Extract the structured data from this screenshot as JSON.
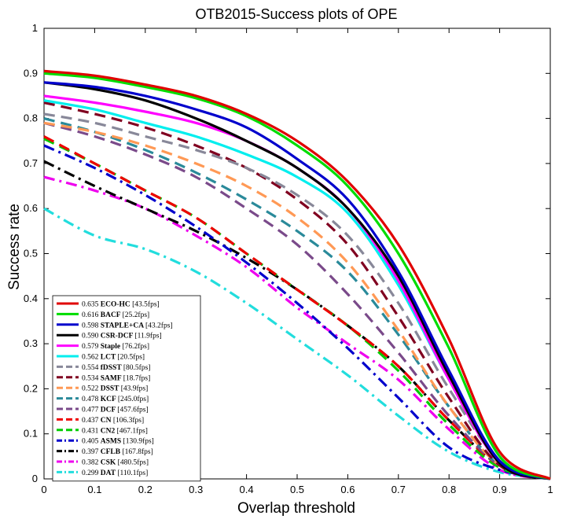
{
  "chart_data": {
    "type": "line",
    "title": "OTB2015-Success plots of OPE",
    "xlabel": "Overlap threshold",
    "ylabel": "Success rate",
    "xlim": [
      0,
      1
    ],
    "ylim": [
      0,
      1
    ],
    "xticks": [
      "0",
      "0.1",
      "0.2",
      "0.3",
      "0.4",
      "0.5",
      "0.6",
      "0.7",
      "0.8",
      "0.9",
      "1"
    ],
    "yticks": [
      "0",
      "0.1",
      "0.2",
      "0.3",
      "0.4",
      "0.5",
      "0.6",
      "0.7",
      "0.8",
      "0.9",
      "1"
    ],
    "grid": false,
    "legend_position": "bottom-left",
    "x": [
      0,
      0.1,
      0.2,
      0.3,
      0.4,
      0.5,
      0.6,
      0.7,
      0.8,
      0.9,
      1.0
    ],
    "series": [
      {
        "name": "ECO-HC",
        "score": "0.635",
        "fps": "[43.5fps]",
        "color": "#e00000",
        "style": "solid",
        "values": [
          0.905,
          0.895,
          0.875,
          0.85,
          0.81,
          0.75,
          0.66,
          0.52,
          0.31,
          0.06,
          0.0
        ]
      },
      {
        "name": "BACF",
        "score": "0.616",
        "fps": "[25.2fps]",
        "color": "#00dd00",
        "style": "solid",
        "values": [
          0.9,
          0.89,
          0.87,
          0.845,
          0.805,
          0.74,
          0.65,
          0.5,
          0.29,
          0.05,
          0.0
        ]
      },
      {
        "name": "STAPLE+CA",
        "score": "0.598",
        "fps": "[43.2fps]",
        "color": "#0000cc",
        "style": "solid",
        "values": [
          0.88,
          0.87,
          0.85,
          0.82,
          0.78,
          0.71,
          0.62,
          0.46,
          0.24,
          0.04,
          0.0
        ]
      },
      {
        "name": "CSR-DCF",
        "score": "0.590",
        "fps": "[11.9fps]",
        "color": "#000000",
        "style": "solid",
        "values": [
          0.88,
          0.865,
          0.84,
          0.8,
          0.75,
          0.69,
          0.6,
          0.45,
          0.23,
          0.035,
          0.0
        ]
      },
      {
        "name": "Staple",
        "score": "0.579",
        "fps": "[76.2fps]",
        "color": "#ff00ff",
        "style": "solid",
        "values": [
          0.85,
          0.835,
          0.815,
          0.79,
          0.75,
          0.69,
          0.6,
          0.44,
          0.22,
          0.035,
          0.0
        ]
      },
      {
        "name": "LCT",
        "score": "0.562",
        "fps": "[20.5fps]",
        "color": "#00eeee",
        "style": "solid",
        "values": [
          0.84,
          0.82,
          0.79,
          0.76,
          0.72,
          0.67,
          0.59,
          0.43,
          0.22,
          0.035,
          0.0
        ]
      },
      {
        "name": "fDSST",
        "score": "0.554",
        "fps": "[80.5fps]",
        "color": "#888899",
        "style": "dash",
        "values": [
          0.81,
          0.79,
          0.76,
          0.73,
          0.69,
          0.63,
          0.54,
          0.39,
          0.2,
          0.04,
          0.0
        ]
      },
      {
        "name": "SAMF",
        "score": "0.534",
        "fps": "[18.7fps]",
        "color": "#800020",
        "style": "dash",
        "values": [
          0.835,
          0.81,
          0.78,
          0.74,
          0.69,
          0.62,
          0.52,
          0.36,
          0.18,
          0.03,
          0.0
        ]
      },
      {
        "name": "DSST",
        "score": "0.522",
        "fps": "[43.9fps]",
        "color": "#ff9955",
        "style": "dash",
        "values": [
          0.79,
          0.77,
          0.74,
          0.7,
          0.65,
          0.58,
          0.48,
          0.33,
          0.16,
          0.03,
          0.0
        ]
      },
      {
        "name": "KCF",
        "score": "0.478",
        "fps": "[245.0fps]",
        "color": "#2a8a9a",
        "style": "dash",
        "values": [
          0.8,
          0.77,
          0.73,
          0.68,
          0.62,
          0.55,
          0.46,
          0.32,
          0.16,
          0.03,
          0.0
        ]
      },
      {
        "name": "DCF",
        "score": "0.477",
        "fps": "[457.6fps]",
        "color": "#7a4a8a",
        "style": "dash",
        "values": [
          0.79,
          0.76,
          0.72,
          0.67,
          0.6,
          0.52,
          0.41,
          0.28,
          0.14,
          0.03,
          0.0
        ]
      },
      {
        "name": "CN",
        "score": "0.437",
        "fps": "[106.3fps]",
        "color": "#ee0000",
        "style": "dash",
        "values": [
          0.76,
          0.7,
          0.64,
          0.58,
          0.5,
          0.42,
          0.34,
          0.25,
          0.13,
          0.03,
          0.0
        ]
      },
      {
        "name": "CN2",
        "score": "0.431",
        "fps": "[467.1fps]",
        "color": "#00cc00",
        "style": "dash",
        "values": [
          0.755,
          0.7,
          0.64,
          0.58,
          0.5,
          0.42,
          0.34,
          0.24,
          0.12,
          0.025,
          0.0
        ]
      },
      {
        "name": "ASMS",
        "score": "0.405",
        "fps": "[130.9fps]",
        "color": "#0000cc",
        "style": "dashdot",
        "values": [
          0.74,
          0.69,
          0.63,
          0.56,
          0.48,
          0.39,
          0.29,
          0.18,
          0.07,
          0.02,
          0.0
        ]
      },
      {
        "name": "CFLB",
        "score": "0.397",
        "fps": "[167.8fps]",
        "color": "#000000",
        "style": "dashdot",
        "values": [
          0.705,
          0.65,
          0.6,
          0.55,
          0.49,
          0.42,
          0.34,
          0.25,
          0.13,
          0.03,
          0.0
        ]
      },
      {
        "name": "CSK",
        "score": "0.382",
        "fps": "[480.5fps]",
        "color": "#ee00ee",
        "style": "dashdot",
        "values": [
          0.67,
          0.64,
          0.6,
          0.54,
          0.47,
          0.38,
          0.3,
          0.22,
          0.11,
          0.02,
          0.0
        ]
      },
      {
        "name": "DAT",
        "score": "0.299",
        "fps": "[110.1fps]",
        "color": "#22dddd",
        "style": "dashdot",
        "values": [
          0.6,
          0.54,
          0.51,
          0.46,
          0.39,
          0.31,
          0.23,
          0.14,
          0.06,
          0.015,
          0.0
        ]
      }
    ]
  }
}
